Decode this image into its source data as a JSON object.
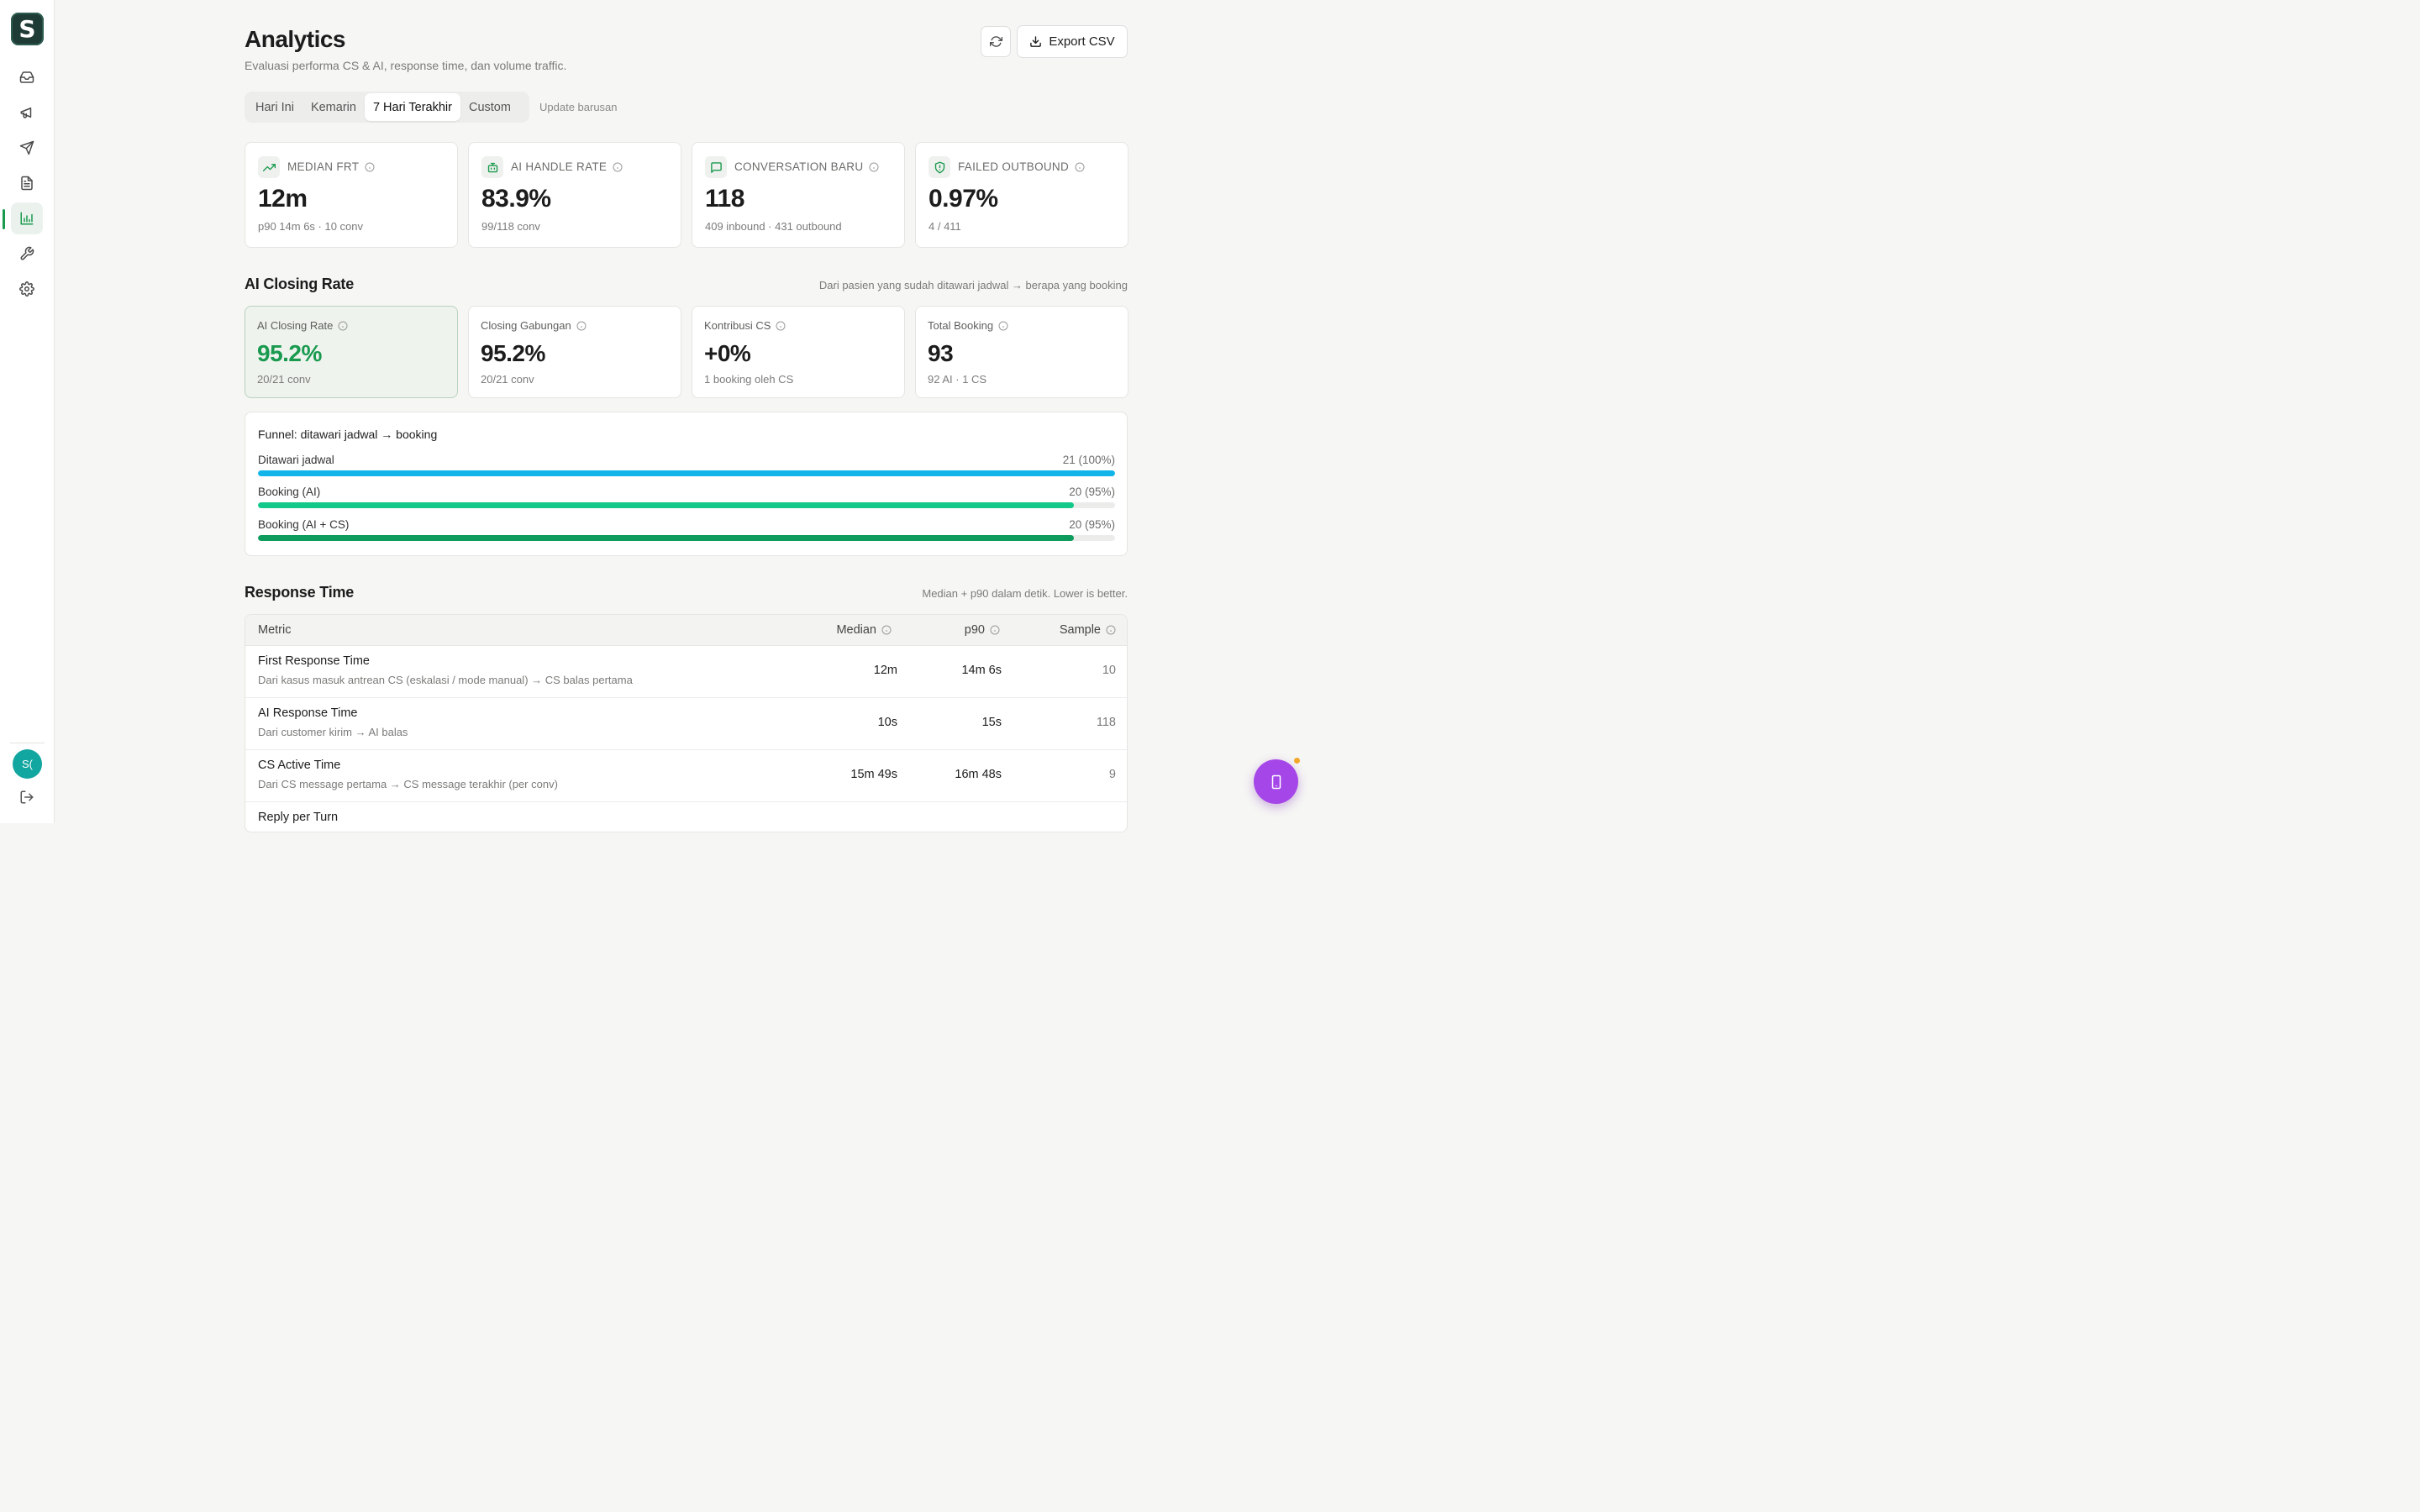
{
  "app": {
    "logo_letter": "S"
  },
  "sidebar": {
    "items": [
      {
        "icon": "inbox-icon"
      },
      {
        "icon": "megaphone-icon"
      },
      {
        "icon": "send-icon"
      },
      {
        "icon": "document-icon"
      },
      {
        "icon": "bar-chart-icon",
        "active": true
      },
      {
        "icon": "wrench-icon"
      },
      {
        "icon": "gear-icon"
      }
    ],
    "avatar_initials": "S(",
    "accent_color": "#1a9a4f"
  },
  "header": {
    "title": "Analytics",
    "subtitle": "Evaluasi performa CS & AI, response time, dan volume traffic.",
    "export_label": "Export CSV"
  },
  "tabs": {
    "items": [
      "Hari Ini",
      "Kemarin",
      "7 Hari Terakhir",
      "Custom"
    ],
    "active": "7 Hari Terakhir",
    "update_text": "Update barusan"
  },
  "kpis": [
    {
      "icon": "trending-up-icon",
      "label": "MEDIAN FRT",
      "value": "12m",
      "sub": "p90 14m 6s · 10 conv"
    },
    {
      "icon": "bot-icon",
      "label": "AI HANDLE RATE",
      "value": "83.9%",
      "sub": "99/118 conv"
    },
    {
      "icon": "message-icon",
      "label": "CONVERSATION BARU",
      "value": "118",
      "sub": "409 inbound · 431 outbound"
    },
    {
      "icon": "shield-alert-icon",
      "label": "FAILED OUTBOUND",
      "value": "0.97%",
      "sub": "4 / 411"
    }
  ],
  "closing": {
    "title": "AI Closing Rate",
    "note": "Dari pasien yang sudah ditawari jadwal → berapa yang booking",
    "cards": [
      {
        "label": "AI Closing Rate",
        "value": "95.2%",
        "sub": "20/21 conv"
      },
      {
        "label": "Closing Gabungan",
        "value": "95.2%",
        "sub": "20/21 conv"
      },
      {
        "label": "Kontribusi CS",
        "value": "+0%",
        "sub": "1 booking oleh CS"
      },
      {
        "label": "Total Booking",
        "value": "93",
        "sub": "92 AI · 1 CS"
      }
    ]
  },
  "funnel": {
    "title": "Funnel: ditawari jadwal → booking",
    "rows": [
      {
        "label": "Ditawari jadwal",
        "count": "21 (100%)",
        "fraction": 1.0,
        "color": "#12b5ea"
      },
      {
        "label": "Booking (AI)",
        "count": "20 (95%)",
        "fraction": 0.952,
        "color": "#12c98a"
      },
      {
        "label": "Booking (AI + CS)",
        "count": "20 (95%)",
        "fraction": 0.952,
        "color": "#0e9b5e"
      }
    ]
  },
  "response_time": {
    "title": "Response Time",
    "note": "Median + p90 dalam detik. Lower is better.",
    "columns": [
      "Metric",
      "Median",
      "p90",
      "Sample"
    ],
    "rows": [
      {
        "title": "First Response Time",
        "desc": "Dari kasus masuk antrean CS (eskalasi / mode manual) → CS balas pertama",
        "median": "12m",
        "p90": "14m 6s",
        "sample": "10"
      },
      {
        "title": "AI Response Time",
        "desc": "Dari customer kirim → AI balas",
        "median": "10s",
        "p90": "15s",
        "sample": "118"
      },
      {
        "title": "CS Active Time",
        "desc": "Dari CS message pertama → CS message terakhir (per conv)",
        "median": "15m 49s",
        "p90": "16m 48s",
        "sample": "9"
      },
      {
        "title": "Reply per Turn",
        "desc": "",
        "median": "",
        "p90": "",
        "sample": ""
      }
    ]
  },
  "fab": {
    "icon": "phone-icon",
    "color": "#a547e8"
  }
}
